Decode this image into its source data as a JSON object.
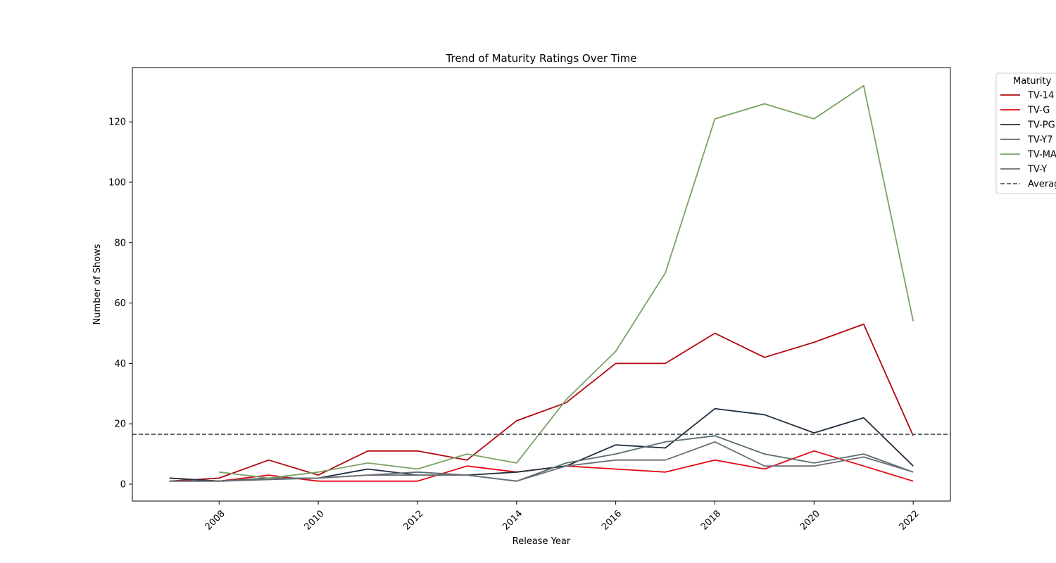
{
  "chart_data": {
    "type": "line",
    "title": "Trend of Maturity Ratings Over Time",
    "xlabel": "Release Year",
    "ylabel": "Number of Shows",
    "x_ticks": [
      2008,
      2010,
      2012,
      2014,
      2016,
      2018,
      2020,
      2022
    ],
    "y_ticks": [
      0,
      20,
      40,
      60,
      80,
      100,
      120
    ],
    "xlim": [
      2006.25,
      2022.75
    ],
    "ylim": [
      -5.6,
      138
    ],
    "grid": false,
    "legend": {
      "title": "Maturity",
      "placement": "outside-right"
    },
    "series": [
      {
        "name": "TV-14",
        "color": "#b20710",
        "points": [
          [
            2007,
            1
          ],
          [
            2008,
            2
          ],
          [
            2009,
            8
          ],
          [
            2010,
            3
          ],
          [
            2011,
            11
          ],
          [
            2012,
            11
          ],
          [
            2013,
            8
          ],
          [
            2014,
            21
          ],
          [
            2015,
            27
          ],
          [
            2016,
            40
          ],
          [
            2017,
            40
          ],
          [
            2018,
            50
          ],
          [
            2019,
            42
          ],
          [
            2020,
            47
          ],
          [
            2021,
            53
          ],
          [
            2022,
            16
          ]
        ]
      },
      {
        "name": "TV-G",
        "color": "#e50914",
        "points": [
          [
            2007,
            2
          ],
          [
            2008,
            1
          ],
          [
            2009,
            3
          ],
          [
            2010,
            1
          ],
          [
            2011,
            1
          ],
          [
            2012,
            1
          ],
          [
            2013,
            6
          ],
          [
            2014,
            4
          ],
          [
            2015,
            6
          ],
          [
            2016,
            5
          ],
          [
            2017,
            4
          ],
          [
            2018,
            8
          ],
          [
            2019,
            5
          ],
          [
            2020,
            11
          ],
          [
            2021,
            6
          ],
          [
            2022,
            1
          ]
        ]
      },
      {
        "name": "TV-PG",
        "color": "#1f2e3d",
        "points": [
          [
            2007,
            2
          ],
          [
            2008,
            1
          ],
          [
            2009,
            2
          ],
          [
            2010,
            2
          ],
          [
            2011,
            5
          ],
          [
            2012,
            3
          ],
          [
            2013,
            3
          ],
          [
            2014,
            4
          ],
          [
            2015,
            6
          ],
          [
            2016,
            13
          ],
          [
            2017,
            12
          ],
          [
            2018,
            25
          ],
          [
            2019,
            23
          ],
          [
            2020,
            17
          ],
          [
            2021,
            22
          ],
          [
            2022,
            6
          ]
        ]
      },
      {
        "name": "TV-Y7",
        "color": "#5c6e6e",
        "points": [
          [
            2007,
            1
          ],
          [
            2008,
            1
          ],
          [
            2009,
            2
          ],
          [
            2010,
            2
          ],
          [
            2011,
            3
          ],
          [
            2012,
            4
          ],
          [
            2013,
            3
          ],
          [
            2014,
            1
          ],
          [
            2015,
            7
          ],
          [
            2016,
            10
          ],
          [
            2017,
            14
          ],
          [
            2018,
            16
          ],
          [
            2019,
            10
          ],
          [
            2020,
            7
          ],
          [
            2021,
            10
          ],
          [
            2022,
            4
          ]
        ]
      },
      {
        "name": "TV-MA",
        "color": "#7aa265",
        "points": [
          [
            2008,
            4
          ],
          [
            2009,
            2
          ],
          [
            2010,
            4
          ],
          [
            2011,
            7
          ],
          [
            2012,
            5
          ],
          [
            2013,
            10
          ],
          [
            2014,
            7
          ],
          [
            2015,
            28
          ],
          [
            2016,
            44
          ],
          [
            2017,
            70
          ],
          [
            2018,
            121
          ],
          [
            2019,
            126
          ],
          [
            2020,
            121
          ],
          [
            2021,
            132
          ],
          [
            2022,
            54
          ]
        ]
      },
      {
        "name": "TV-Y",
        "color": "#6a6e78",
        "points": [
          [
            2007,
            1
          ],
          [
            2008,
            1
          ],
          [
            2009,
            1.5
          ],
          [
            2010,
            2
          ],
          [
            2011,
            3
          ],
          [
            2012,
            3
          ],
          [
            2013,
            3
          ],
          [
            2014,
            1
          ],
          [
            2015,
            6
          ],
          [
            2016,
            8
          ],
          [
            2017,
            8
          ],
          [
            2018,
            14
          ],
          [
            2019,
            6
          ],
          [
            2020,
            6
          ],
          [
            2021,
            9
          ],
          [
            2022,
            4
          ]
        ]
      }
    ],
    "reference_lines": [
      {
        "name": "Average",
        "y": 16.5,
        "color": "#5a6068",
        "style": "dashed"
      }
    ]
  }
}
